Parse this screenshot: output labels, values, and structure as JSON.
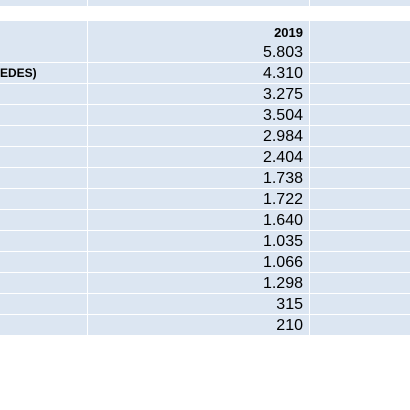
{
  "table": {
    "header_year": "2019",
    "rows": [
      {
        "label": "",
        "value": "5.803"
      },
      {
        "label": "EDES)",
        "value": "4.310"
      },
      {
        "label": "",
        "value": "3.275"
      },
      {
        "label": "",
        "value": "3.504"
      },
      {
        "label": "",
        "value": "2.984"
      },
      {
        "label": "",
        "value": "2.404"
      },
      {
        "label": "",
        "value": "1.738"
      },
      {
        "label": "",
        "value": "1.722"
      },
      {
        "label": "",
        "value": "1.640"
      },
      {
        "label": "",
        "value": "1.035"
      },
      {
        "label": "",
        "value": "1.066"
      },
      {
        "label": "",
        "value": "1.298"
      },
      {
        "label": "",
        "value": "315"
      },
      {
        "label": "",
        "value": "210"
      }
    ]
  },
  "colors": {
    "cell_background": "#dce6f2",
    "grid_line": "#ffffff"
  }
}
